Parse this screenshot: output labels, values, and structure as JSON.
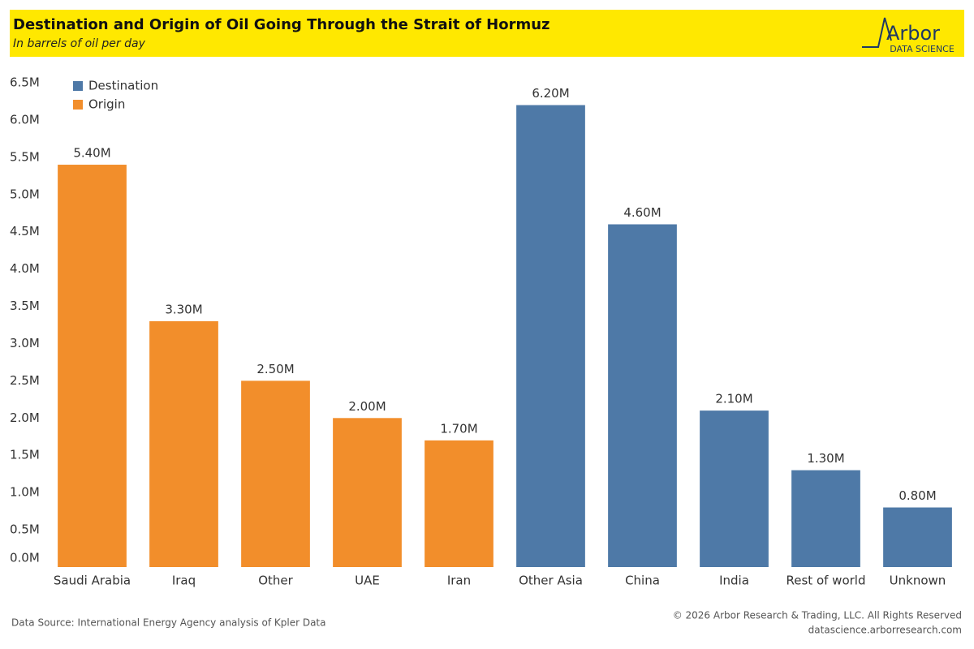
{
  "chart_data": {
    "type": "bar",
    "title": "Destination and Origin of Oil Going Through the Strait of Hormuz",
    "subtitle": "In barrels of oil per day",
    "logo_text": "Arbor",
    "logo_subtext": "DATA SCIENCE",
    "source": "Data Source: International Energy Agency analysis of Kpler Data",
    "copyright": "© 2026 Arbor Research & Trading, LLC. All Rights Reserved",
    "website": "datascience.arborresearch.com",
    "categories": [
      "Saudi Arabia",
      "Iraq",
      "Other",
      "UAE",
      "Iran",
      "Other Asia",
      "China",
      "India",
      "Rest of world",
      "Unknown"
    ],
    "series": [
      {
        "name": "Destination",
        "color": "#4e79a7",
        "values": [
          null,
          null,
          null,
          null,
          null,
          6200000,
          4600000,
          2100000,
          1300000,
          800000
        ],
        "value_labels": [
          null,
          null,
          null,
          null,
          null,
          "6.20M",
          "4.60M",
          "2.10M",
          "1.30M",
          "0.80M"
        ]
      },
      {
        "name": "Origin",
        "color": "#f28e2b",
        "values": [
          5400000,
          3300000,
          2500000,
          2000000,
          1700000,
          null,
          null,
          null,
          null,
          null
        ],
        "value_labels": [
          "5.40M",
          "3.30M",
          "2.50M",
          "2.00M",
          "1.70M",
          null,
          null,
          null,
          null,
          null
        ]
      }
    ],
    "ylim": [
      0,
      6500000
    ],
    "yticks": [
      {
        "value": 0,
        "label": "0.0M"
      },
      {
        "value": 500000,
        "label": "0.5M"
      },
      {
        "value": 1000000,
        "label": "1.0M"
      },
      {
        "value": 1500000,
        "label": "1.5M"
      },
      {
        "value": 2000000,
        "label": "2.0M"
      },
      {
        "value": 2500000,
        "label": "2.5M"
      },
      {
        "value": 3000000,
        "label": "3.0M"
      },
      {
        "value": 3500000,
        "label": "3.5M"
      },
      {
        "value": 4000000,
        "label": "4.0M"
      },
      {
        "value": 4500000,
        "label": "4.5M"
      },
      {
        "value": 5000000,
        "label": "5.0M"
      },
      {
        "value": 5500000,
        "label": "5.5M"
      },
      {
        "value": 6000000,
        "label": "6.0M"
      },
      {
        "value": 6500000,
        "label": "6.5M"
      }
    ],
    "grid": false,
    "legend": "top-left"
  }
}
